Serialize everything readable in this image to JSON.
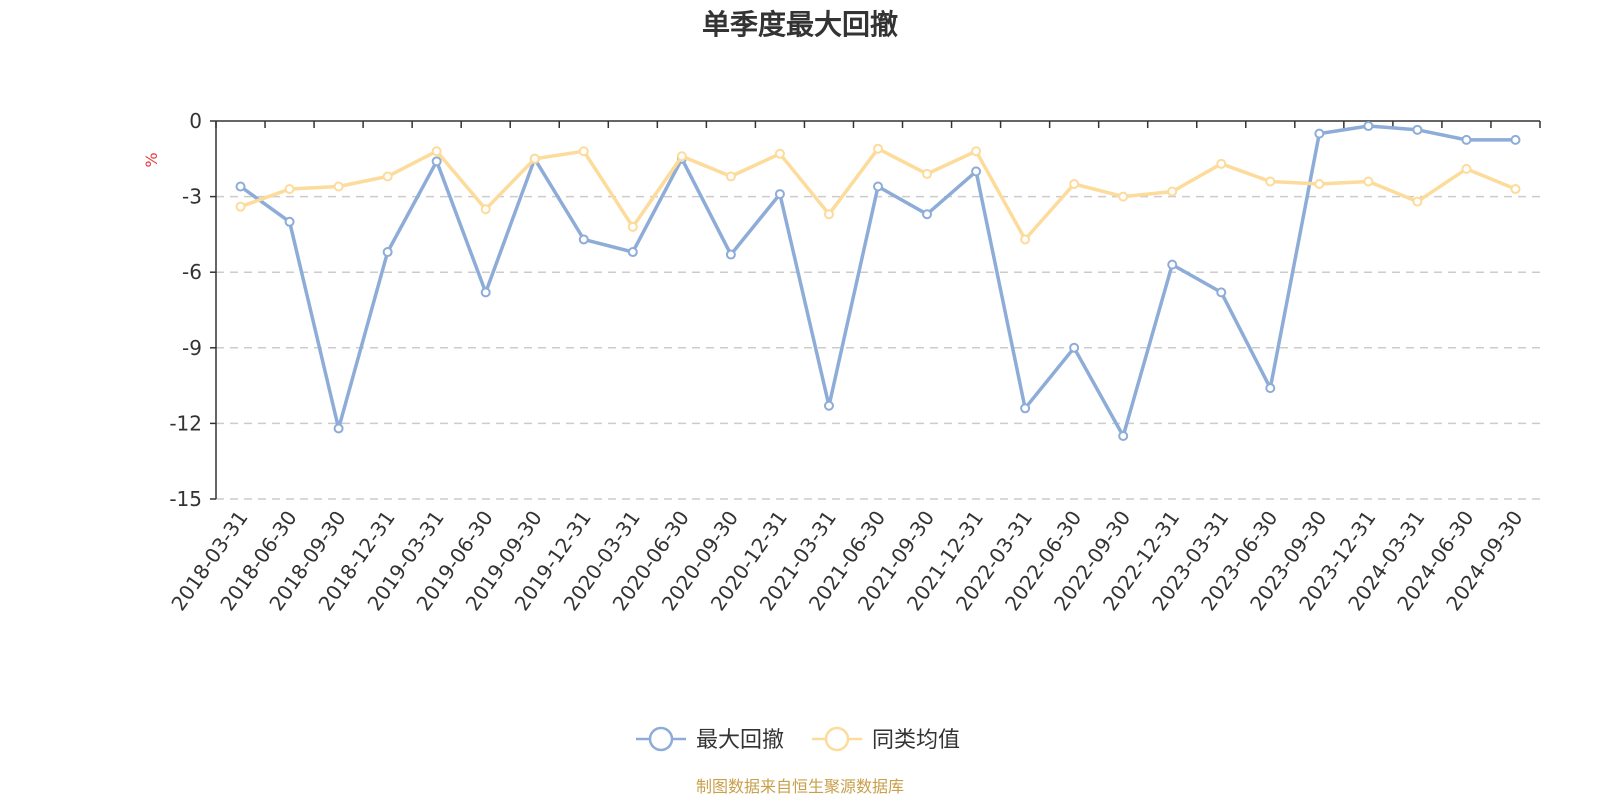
{
  "chart_data": {
    "type": "line",
    "title": "单季度最大回撤",
    "ylabel": "%",
    "ylim": [
      -15,
      0
    ],
    "yticks": [
      0,
      -3,
      -6,
      -9,
      -12,
      -15
    ],
    "grid": "horizontal-dashed",
    "legend_position": "bottom-center",
    "categories": [
      "2018-03-31",
      "2018-06-30",
      "2018-09-30",
      "2018-12-31",
      "2019-03-31",
      "2019-06-30",
      "2019-09-30",
      "2019-12-31",
      "2020-03-31",
      "2020-06-30",
      "2020-09-30",
      "2020-12-31",
      "2021-03-31",
      "2021-06-30",
      "2021-09-30",
      "2021-12-31",
      "2022-03-31",
      "2022-06-30",
      "2022-09-30",
      "2022-12-31",
      "2023-03-31",
      "2023-06-30",
      "2023-09-30",
      "2023-12-31",
      "2024-03-31",
      "2024-06-30",
      "2024-09-30"
    ],
    "series": [
      {
        "name": "最大回撤",
        "color": "#8eacd8",
        "values": [
          -2.6,
          -4.0,
          -12.2,
          -5.2,
          -1.6,
          -6.8,
          -1.5,
          -4.7,
          -5.2,
          -1.5,
          -5.3,
          -2.9,
          -11.3,
          -2.6,
          -3.7,
          -2.0,
          -11.4,
          -9.0,
          -12.5,
          -5.7,
          -6.8,
          -10.6,
          -0.5,
          -0.2,
          -0.35,
          -0.75,
          -0.75
        ]
      },
      {
        "name": "同类均值",
        "color": "#fddb9a",
        "values": [
          -3.4,
          -2.7,
          -2.6,
          -2.2,
          -1.2,
          -3.5,
          -1.5,
          -1.2,
          -4.2,
          -1.4,
          -2.2,
          -1.3,
          -3.7,
          -1.1,
          -2.1,
          -1.2,
          -4.7,
          -2.5,
          -3.0,
          -2.8,
          -1.7,
          -2.4,
          -2.5,
          -2.4,
          -3.2,
          -1.9,
          -2.7
        ]
      }
    ],
    "axis_color": "#333333",
    "grid_color": "#cccccc",
    "unit_color": "#e8383d"
  },
  "footer": {
    "source": "制图数据来自恒生聚源数据库",
    "source_color": "#c8a04a"
  }
}
